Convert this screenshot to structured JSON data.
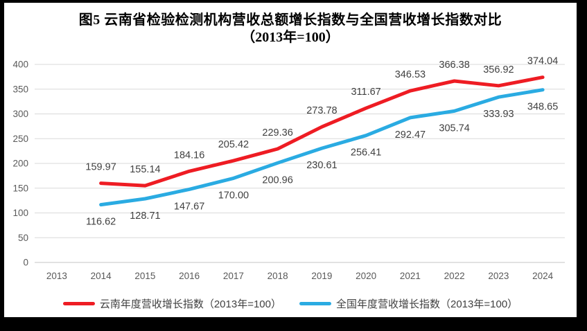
{
  "chart_data": {
    "type": "line",
    "title": "图5  云南省检验检测机构营收总额增长指数与全国营收增长指数对比",
    "subtitle": "（2013年=100）",
    "categories": [
      "2013",
      "2014",
      "2015",
      "2016",
      "2017",
      "2018",
      "2019",
      "2020",
      "2021",
      "2022",
      "2023",
      "2024"
    ],
    "series": [
      {
        "name": "云南年度营收增长指数（2013年=100）",
        "color": "#ee1c23",
        "label_position": "above",
        "values": [
          null,
          159.97,
          155.14,
          184.16,
          205.42,
          229.36,
          273.78,
          311.67,
          346.53,
          366.38,
          356.92,
          374.04
        ]
      },
      {
        "name": "全国年度营收增长指数（2013年=100）",
        "color": "#2aabe2",
        "label_position": "below",
        "values": [
          null,
          116.62,
          128.71,
          147.67,
          170.0,
          200.96,
          230.61,
          256.41,
          292.47,
          305.74,
          333.93,
          348.65
        ]
      }
    ],
    "xlabel": "",
    "ylabel": "",
    "ylim": [
      0,
      400
    ],
    "ytick_step": 50,
    "grid": true,
    "legend_position": "bottom",
    "label_decimals": 2
  },
  "style": {
    "background": "#ffffff",
    "frame": "#000000",
    "gridline_color": "#d9d9d9",
    "axis_line_color": "#c6c6c6",
    "axis_label_color": "#595959",
    "data_label_color": "#404040",
    "legend_text_color": "#404040"
  }
}
